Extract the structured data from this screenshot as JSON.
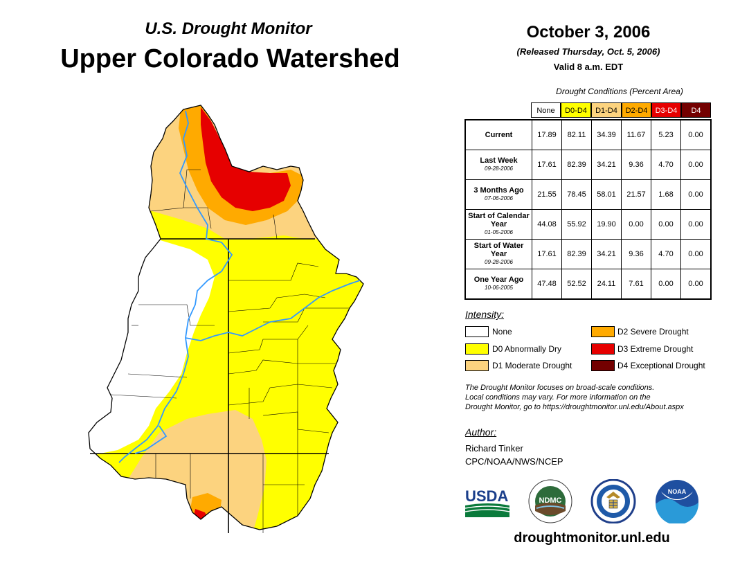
{
  "header": {
    "subtitle": "U.S. Drought Monitor",
    "title": "Upper Colorado Watershed",
    "date": "October 3, 2006",
    "released": "(Released Thursday, Oct. 5, 2006)",
    "valid": "Valid 8 a.m. EDT"
  },
  "conditions": {
    "title": "Drought Conditions (Percent Area)",
    "columns": [
      {
        "label": "None",
        "color": "#ffffff",
        "text_color": "#000000"
      },
      {
        "label": "D0-D4",
        "color": "#ffff00",
        "text_color": "#000000"
      },
      {
        "label": "D1-D4",
        "color": "#fcd37f",
        "text_color": "#000000"
      },
      {
        "label": "D2-D4",
        "color": "#ffaa00",
        "text_color": "#000000"
      },
      {
        "label": "D3-D4",
        "color": "#e60000",
        "text_color": "#ffffff"
      },
      {
        "label": "D4",
        "color": "#730000",
        "text_color": "#ffffff"
      }
    ],
    "rows": [
      {
        "label": "Current",
        "date": "",
        "values": [
          "17.89",
          "82.11",
          "34.39",
          "11.67",
          "5.23",
          "0.00"
        ]
      },
      {
        "label": "Last Week",
        "date": "09-28-2006",
        "values": [
          "17.61",
          "82.39",
          "34.21",
          "9.36",
          "4.70",
          "0.00"
        ]
      },
      {
        "label": "3 Months Ago",
        "date": "07-06-2006",
        "values": [
          "21.55",
          "78.45",
          "58.01",
          "21.57",
          "1.68",
          "0.00"
        ]
      },
      {
        "label": "Start of Calendar Year",
        "date": "01-05-2006",
        "values": [
          "44.08",
          "55.92",
          "19.90",
          "0.00",
          "0.00",
          "0.00"
        ]
      },
      {
        "label": "Start of Water Year",
        "date": "09-28-2006",
        "values": [
          "17.61",
          "82.39",
          "34.21",
          "9.36",
          "4.70",
          "0.00"
        ]
      },
      {
        "label": "One Year Ago",
        "date": "10-06-2005",
        "values": [
          "47.48",
          "52.52",
          "24.11",
          "7.61",
          "0.00",
          "0.00"
        ]
      }
    ]
  },
  "legend": {
    "title": "Intensity:",
    "items": [
      {
        "label": "None",
        "color": "#ffffff"
      },
      {
        "label": "D0 Abnormally Dry",
        "color": "#ffff00"
      },
      {
        "label": "D1 Moderate Drought",
        "color": "#fcd37f"
      },
      {
        "label": "D2 Severe Drought",
        "color": "#ffaa00"
      },
      {
        "label": "D3 Extreme Drought",
        "color": "#e60000"
      },
      {
        "label": "D4 Exceptional Drought",
        "color": "#730000"
      }
    ]
  },
  "note": {
    "line1": "The Drought Monitor focuses on broad-scale conditions.",
    "line2": "Local conditions may vary. For more information on the",
    "line3": "Drought Monitor, go to https://droughtmonitor.unl.edu/About.aspx"
  },
  "author": {
    "label": "Author:",
    "name": "Richard Tinker",
    "org": "CPC/NOAA/NWS/NCEP"
  },
  "logos": {
    "usda": "USDA",
    "ndmc": "NDMC",
    "noaa": "NOAA"
  },
  "footer": {
    "website": "droughtmonitor.unl.edu"
  },
  "colors": {
    "river": "#3399ff",
    "none": "#ffffff",
    "d0": "#ffff00",
    "d1": "#fcd37f",
    "d2": "#ffaa00",
    "d3": "#e60000"
  }
}
